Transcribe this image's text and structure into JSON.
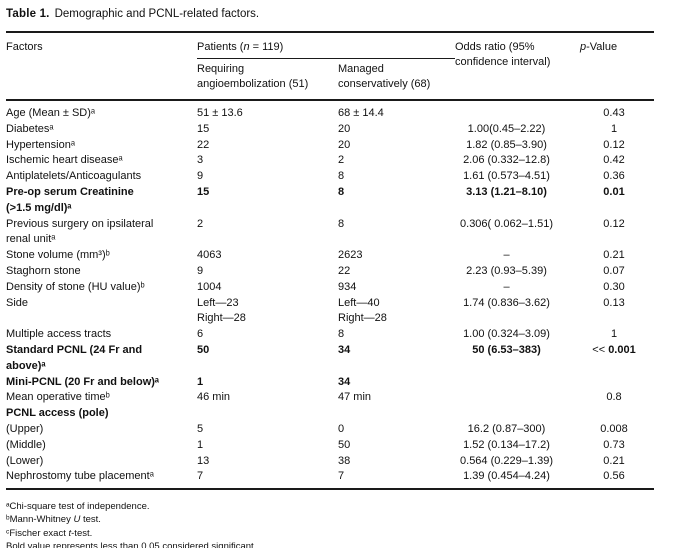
{
  "caption": {
    "label": "Table 1.",
    "text": "Demographic and PCNL-related factors."
  },
  "header": {
    "factors": "Factors",
    "patients_pre": "Patients (",
    "patients_n": "n",
    "patients_post": " = 119)",
    "sub_requiring": "Requiring\nangioembolization (51)",
    "sub_managed": "Managed\nconservatively (68)",
    "odds_ratio": "Odds ratio (95%\nconfidence interval)",
    "p_italic": "p",
    "p_rest": "-Value"
  },
  "rows": [
    {
      "factor": "Age (Mean ± SD)ᵃ",
      "angio": "51 ± 13.6",
      "conserv": "68 ± 14.4",
      "odds": "",
      "p": "0.43"
    },
    {
      "factor": "Diabetesᵃ",
      "angio": "15",
      "conserv": "20",
      "odds": "1.00(0.45–2.22)",
      "p": "1"
    },
    {
      "factor": "Hypertensionᵃ",
      "angio": "22",
      "conserv": "20",
      "odds": "1.82 (0.85–3.90)",
      "p": "0.12"
    },
    {
      "factor": "Ischemic heart diseaseᵃ",
      "angio": "3",
      "conserv": "2",
      "odds": "2.06 (0.332–12.8)",
      "p": "0.42"
    },
    {
      "factor": "Antiplatelets/Anticoagulants",
      "angio": "9",
      "conserv": "8",
      "odds": "1.61 (0.573–4.51)",
      "p": "0.36"
    },
    {
      "factor": "Pre-op serum Creatinine\n (>1.5 mg/dl)ᵃ",
      "angio": "15",
      "conserv": "8",
      "odds": "3.13 (1.21–8.10)",
      "p": "0.01"
    },
    {
      "factor": "Previous surgery on ipsilateral\nrenal unitᵃ",
      "angio": "2",
      "conserv": "8",
      "odds": "0.306( 0.062–1.51)",
      "p": "0.12"
    },
    {
      "factor": "Stone volume (mm³)ᵇ",
      "angio": "4063",
      "conserv": "2623",
      "odds": "–",
      "p": "0.21"
    },
    {
      "factor": "Staghorn stone",
      "angio": "9",
      "conserv": "22",
      "odds": "2.23 (0.93–5.39)",
      "p": "0.07"
    },
    {
      "factor": "Density of stone (HU value)ᵇ",
      "angio": "1004",
      "conserv": "934",
      "odds": "–",
      "p": "0.30"
    },
    {
      "factor": "Side",
      "angio": "Left—23\nRight—28",
      "conserv": "Left—40\nRight—28",
      "odds": "1.74 (0.836–3.62)",
      "p": "0.13"
    },
    {
      "factor": "Multiple access tracts",
      "angio": "6",
      "conserv": "8",
      "odds": "1.00 (0.324–3.09)",
      "p": "1"
    },
    {
      "factor": "Standard PCNL (24 Fr and\nabove)ᵃ",
      "angio": "50",
      "conserv": "34",
      "odds": "50 (6.53–383)",
      "p_lt": "<< ",
      "p": "0.001"
    },
    {
      "factor": "Mini-PCNL (20 Fr and below)ᵃ",
      "angio": "1",
      "conserv": "34",
      "odds": "",
      "p": ""
    },
    {
      "factor": "Mean operative timeᵇ",
      "angio": "46 min",
      "conserv": "47 min",
      "odds": "",
      "p": "0.8"
    },
    {
      "factor": "PCNL access (pole)",
      "angio": "",
      "conserv": "",
      "odds": "",
      "p": ""
    },
    {
      "factor": "(Upper)",
      "angio": "5",
      "conserv": "0",
      "odds": "16.2 (0.87–300)",
      "p": "0.008"
    },
    {
      "factor": "(Middle)",
      "angio": "1",
      "conserv": "50",
      "odds": "1.52 (0.134–17.2)",
      "p": "0.73"
    },
    {
      "factor": "(Lower)",
      "angio": "13",
      "conserv": "38",
      "odds": "0.564 (0.229–1.39)",
      "p": "0.21"
    },
    {
      "factor": "Nephrostomy tube placementᵃ",
      "angio": "7",
      "conserv": "7",
      "odds": "1.39 (0.454–4.24)",
      "p": "0.56"
    }
  ],
  "footnotes": {
    "a": "ᵃChi-square test of independence.",
    "b_pre": "ᵇMann-Whitney ",
    "b_it": "U",
    "b_post": " test.",
    "c_pre": "ᶜFischer exact ",
    "c_it": "t",
    "c_post": "-test.",
    "bold_note": "Bold value represents less than 0.05 considered significant."
  }
}
